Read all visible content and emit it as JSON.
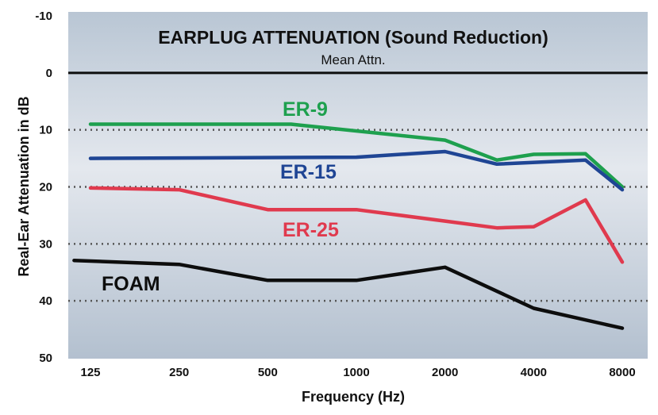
{
  "chart_data": {
    "type": "line",
    "title": "EARPLUG ATTENUATION (Sound Reduction)",
    "subtitle": "Mean Attn.",
    "xlabel": "Frequency (Hz)",
    "ylabel": "Real-Ear Attenuation in dB",
    "x_ticks": [
      "125",
      "250",
      "500",
      "1000",
      "2000",
      "4000",
      "8000"
    ],
    "y_ticks": [
      "-10",
      "0",
      "10",
      "20",
      "30",
      "40",
      "50"
    ],
    "ylim": [
      -10,
      50
    ],
    "y_inverted": true,
    "x_scale": "log2",
    "grid": "dotted horizontal at 10, 20, 30, 40",
    "zero_line": "solid at 0",
    "series": [
      {
        "name": "ER-9",
        "color": "#1ea04e",
        "points": [
          [
            125,
            9
          ],
          [
            600,
            9
          ],
          [
            2000,
            11.8
          ],
          [
            3000,
            15.3
          ],
          [
            4000,
            14.3
          ],
          [
            6000,
            14.2
          ],
          [
            8000,
            20
          ]
        ]
      },
      {
        "name": "ER-15",
        "color": "#1f4594",
        "points": [
          [
            125,
            15
          ],
          [
            1000,
            14.8
          ],
          [
            2000,
            13.8
          ],
          [
            3000,
            16
          ],
          [
            6000,
            15.3
          ],
          [
            8000,
            20.5
          ]
        ]
      },
      {
        "name": "ER-25",
        "color": "#e03a4e",
        "points": [
          [
            125,
            20.2
          ],
          [
            250,
            20.5
          ],
          [
            500,
            24
          ],
          [
            1000,
            24
          ],
          [
            2000,
            26
          ],
          [
            3000,
            27.2
          ],
          [
            4000,
            27
          ],
          [
            6000,
            22.3
          ],
          [
            8000,
            33.2
          ]
        ]
      },
      {
        "name": "FOAM",
        "color": "#0d0d0d",
        "points": [
          [
            110,
            32.9
          ],
          [
            250,
            33.6
          ],
          [
            500,
            36.4
          ],
          [
            1000,
            36.4
          ],
          [
            2000,
            34.1
          ],
          [
            4000,
            41.3
          ],
          [
            8000,
            44.8
          ]
        ]
      }
    ]
  }
}
